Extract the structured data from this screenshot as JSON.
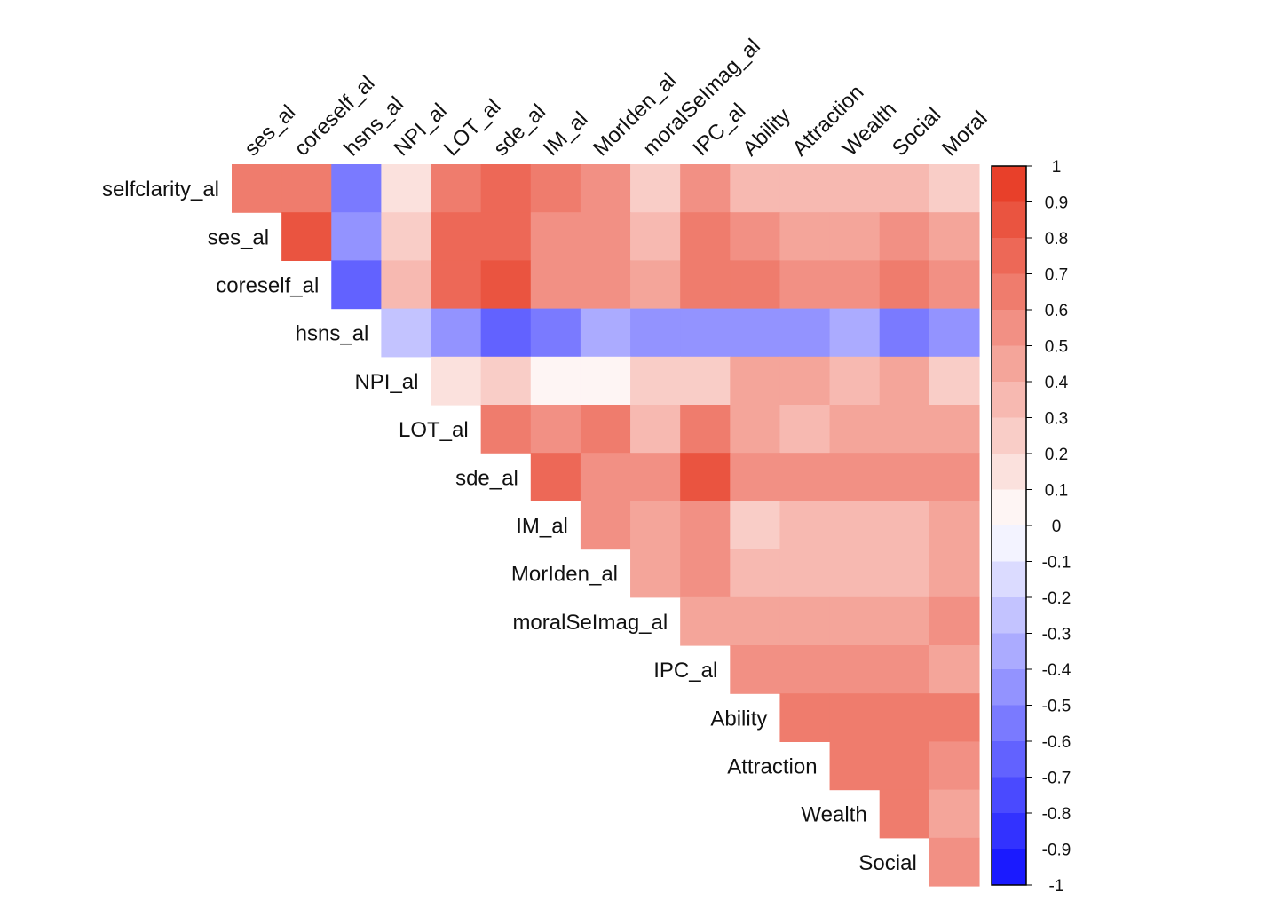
{
  "chart_data": {
    "type": "heatmap",
    "title": "",
    "row_labels": [
      "selfclarity_al",
      "ses_al",
      "coreself_al",
      "hsns_al",
      "NPI_al",
      "LOT_al",
      "sde_al",
      "IM_al",
      "MorIden_al",
      "moralSeImag_al",
      "IPC_al",
      "Ability",
      "Attraction",
      "Wealth",
      "Social"
    ],
    "column_labels": [
      "ses_al",
      "coreself_al",
      "hsns_al",
      "NPI_al",
      "LOT_al",
      "sde_al",
      "IM_al",
      "MorIden_al",
      "moralSeImag_al",
      "IPC_al",
      "Ability",
      "Attraction",
      "Wealth",
      "Social",
      "Moral"
    ],
    "layout": "upper-triangle",
    "values": [
      [
        0.65,
        0.65,
        -0.55,
        0.15,
        0.7,
        0.75,
        0.7,
        0.6,
        0.25,
        0.5,
        0.35,
        0.35,
        0.35,
        0.35,
        0.25
      ],
      [
        null,
        0.8,
        -0.45,
        0.25,
        0.75,
        0.75,
        0.55,
        0.55,
        0.35,
        0.7,
        0.6,
        0.45,
        0.45,
        0.6,
        0.45
      ],
      [
        null,
        null,
        -0.65,
        0.35,
        0.75,
        0.85,
        0.55,
        0.55,
        0.45,
        0.7,
        0.65,
        0.6,
        0.6,
        0.7,
        0.6
      ],
      [
        null,
        null,
        null,
        -0.25,
        -0.45,
        -0.65,
        -0.55,
        -0.35,
        -0.45,
        -0.45,
        -0.45,
        -0.45,
        -0.35,
        -0.55,
        -0.45
      ],
      [
        null,
        null,
        null,
        null,
        0.15,
        0.25,
        0.05,
        0.05,
        0.25,
        0.25,
        0.45,
        0.45,
        0.35,
        0.45,
        0.25
      ],
      [
        null,
        null,
        null,
        null,
        null,
        0.65,
        0.55,
        0.65,
        0.35,
        0.7,
        0.45,
        0.35,
        0.45,
        0.45,
        0.45
      ],
      [
        null,
        null,
        null,
        null,
        null,
        null,
        0.75,
        0.55,
        0.55,
        0.8,
        0.55,
        0.55,
        0.55,
        0.55,
        0.55
      ],
      [
        null,
        null,
        null,
        null,
        null,
        null,
        null,
        0.55,
        0.45,
        0.6,
        0.25,
        0.35,
        0.35,
        0.35,
        0.45
      ],
      [
        null,
        null,
        null,
        null,
        null,
        null,
        null,
        null,
        0.45,
        0.6,
        0.35,
        0.35,
        0.35,
        0.35,
        0.45
      ],
      [
        null,
        null,
        null,
        null,
        null,
        null,
        null,
        null,
        null,
        0.45,
        0.45,
        0.45,
        0.45,
        0.45,
        0.6
      ],
      [
        null,
        null,
        null,
        null,
        null,
        null,
        null,
        null,
        null,
        null,
        0.55,
        0.55,
        0.55,
        0.55,
        0.45
      ],
      [
        null,
        null,
        null,
        null,
        null,
        null,
        null,
        null,
        null,
        null,
        null,
        0.65,
        0.65,
        0.65,
        0.7
      ],
      [
        null,
        null,
        null,
        null,
        null,
        null,
        null,
        null,
        null,
        null,
        null,
        null,
        0.65,
        0.65,
        0.6
      ],
      [
        null,
        null,
        null,
        null,
        null,
        null,
        null,
        null,
        null,
        null,
        null,
        null,
        null,
        0.65,
        0.45
      ],
      [
        null,
        null,
        null,
        null,
        null,
        null,
        null,
        null,
        null,
        null,
        null,
        null,
        null,
        null,
        0.55
      ]
    ],
    "color_scale": {
      "range": [
        -1,
        1
      ],
      "bin_width": 0.1,
      "low_color": "#1a1aff",
      "mid_color": "#ffffff",
      "high_color": "#e8402a",
      "tick_labels": [
        "1",
        "0.9",
        "0.8",
        "0.7",
        "0.6",
        "0.5",
        "0.4",
        "0.3",
        "0.2",
        "0.1",
        "0",
        "-0.1",
        "-0.2",
        "-0.3",
        "-0.4",
        "-0.5",
        "-0.6",
        "-0.7",
        "-0.8",
        "-0.9",
        "-1"
      ],
      "tick_values": [
        1,
        0.9,
        0.8,
        0.7,
        0.6,
        0.5,
        0.4,
        0.3,
        0.2,
        0.1,
        0,
        -0.1,
        -0.2,
        -0.3,
        -0.4,
        -0.5,
        -0.6,
        -0.7,
        -0.8,
        -0.9,
        -1
      ],
      "position": "right"
    },
    "grid": false
  }
}
